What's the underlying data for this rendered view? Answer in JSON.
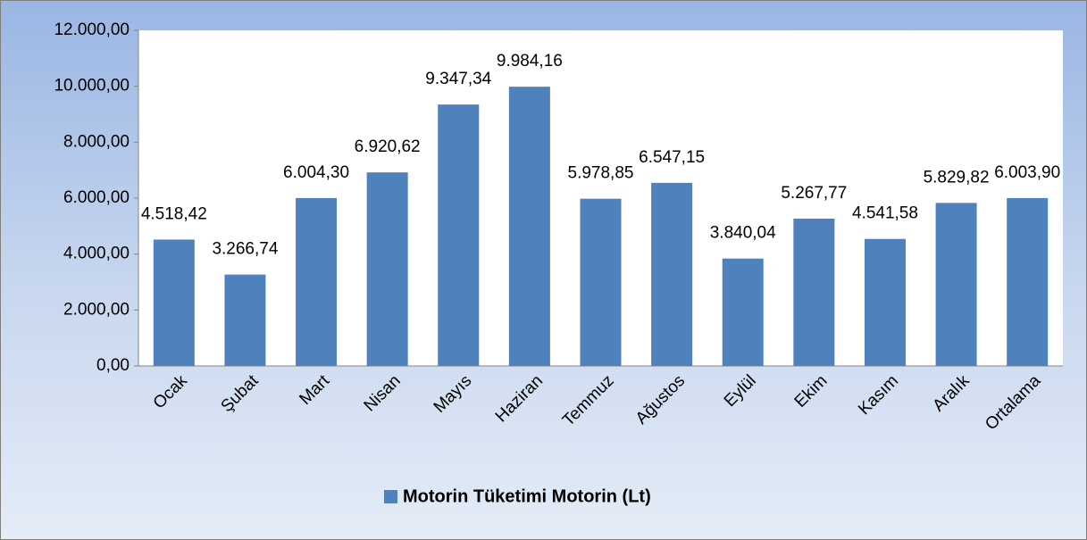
{
  "chart_data": {
    "type": "bar",
    "categories": [
      "Ocak",
      "Şubat",
      "Mart",
      "Nisan",
      "Mayıs",
      "Haziran",
      "Temmuz",
      "Ağustos",
      "Eylül",
      "Ekim",
      "Kasım",
      "Aralık",
      "Ortalama"
    ],
    "series": [
      {
        "name": "Motorin Tüketimi Motorin (Lt)",
        "color": "#4f81bd",
        "values": [
          4518.42,
          3266.74,
          6004.3,
          6920.62,
          9347.34,
          9984.16,
          5978.85,
          6547.15,
          3840.04,
          5267.77,
          4541.58,
          5829.82,
          6003.9
        ],
        "value_labels": [
          "4.518,42",
          "3.266,74",
          "6.004,30",
          "6.920,62",
          "9.347,34",
          "9.984,16",
          "5.978,85",
          "6.547,15",
          "3.840,04",
          "5.267,77",
          "4.541,58",
          "5.829,82",
          "6.003,90"
        ]
      }
    ],
    "ylim": [
      0,
      12000
    ],
    "yticks": [
      {
        "value": 0,
        "label": "0,00"
      },
      {
        "value": 2000,
        "label": "2.000,00"
      },
      {
        "value": 4000,
        "label": "4.000,00"
      },
      {
        "value": 6000,
        "label": "6.000,00"
      },
      {
        "value": 8000,
        "label": "8.000,00"
      },
      {
        "value": 10000,
        "label": "10.000,00"
      },
      {
        "value": 12000,
        "label": "12.000,00"
      }
    ],
    "legend": "bottom"
  }
}
